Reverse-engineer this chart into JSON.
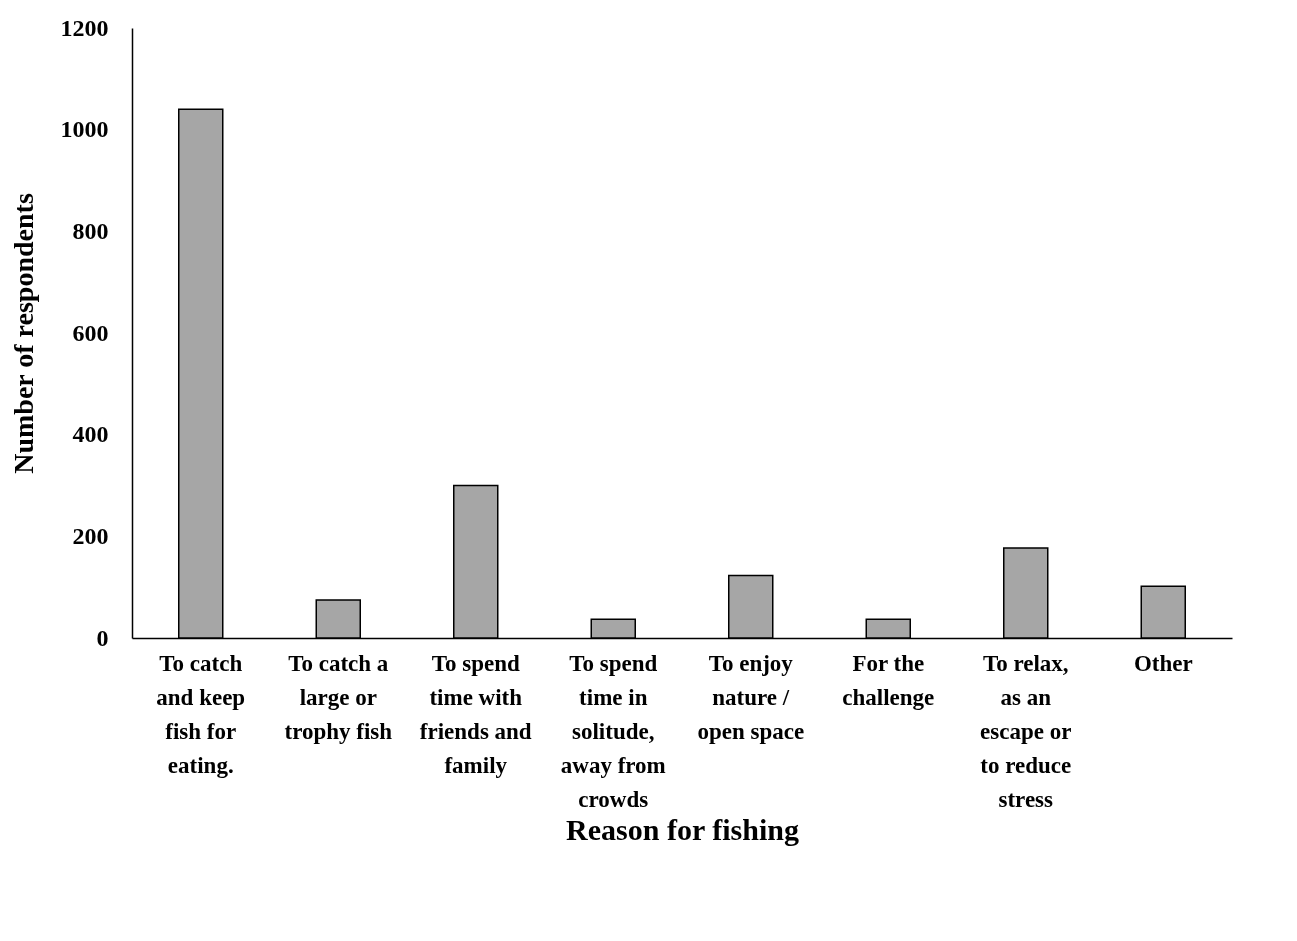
{
  "chart_data": {
    "type": "bar",
    "xlabel": "Reason for fishing",
    "ylabel": "Number of respondents",
    "categories": [
      "To catch and keep fish for eating.",
      "To catch a large or trophy fish",
      "To spend time with friends and family",
      "To spend time in solitude, away from crowds",
      "To enjoy nature / open space",
      "For the challenge",
      "To relax, as an escape or to reduce stress",
      "Other"
    ],
    "values": [
      1040,
      75,
      300,
      37,
      123,
      37,
      177,
      102
    ],
    "color": "#a6a6a6",
    "ylim": [
      0,
      1200
    ],
    "yticks": [
      0,
      200,
      400,
      600,
      800,
      1000,
      1200
    ],
    "grid": false
  }
}
